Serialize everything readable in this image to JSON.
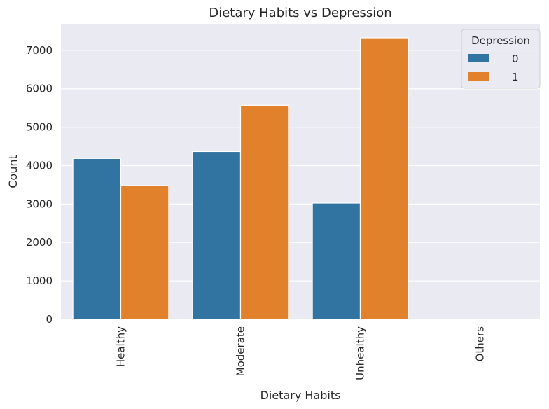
{
  "chart_data": {
    "type": "bar",
    "title": "Dietary Habits vs Depression",
    "xlabel": "Dietary Habits",
    "ylabel": "Count",
    "categories": [
      "Healthy",
      "Moderate",
      "Unhealthy",
      "Others"
    ],
    "series": [
      {
        "name": "0",
        "values": [
          4185,
          4365,
          3025,
          5
        ],
        "color": "#3274a1"
      },
      {
        "name": "1",
        "values": [
          3480,
          5570,
          7325,
          7
        ],
        "color": "#e1812c"
      }
    ],
    "ylim": [
      0,
      7690
    ],
    "yticks": [
      0,
      1000,
      2000,
      3000,
      4000,
      5000,
      6000,
      7000
    ],
    "grid": true,
    "legend": {
      "title": "Depression",
      "placement": "top-right"
    },
    "background": "#eaeaf2"
  }
}
